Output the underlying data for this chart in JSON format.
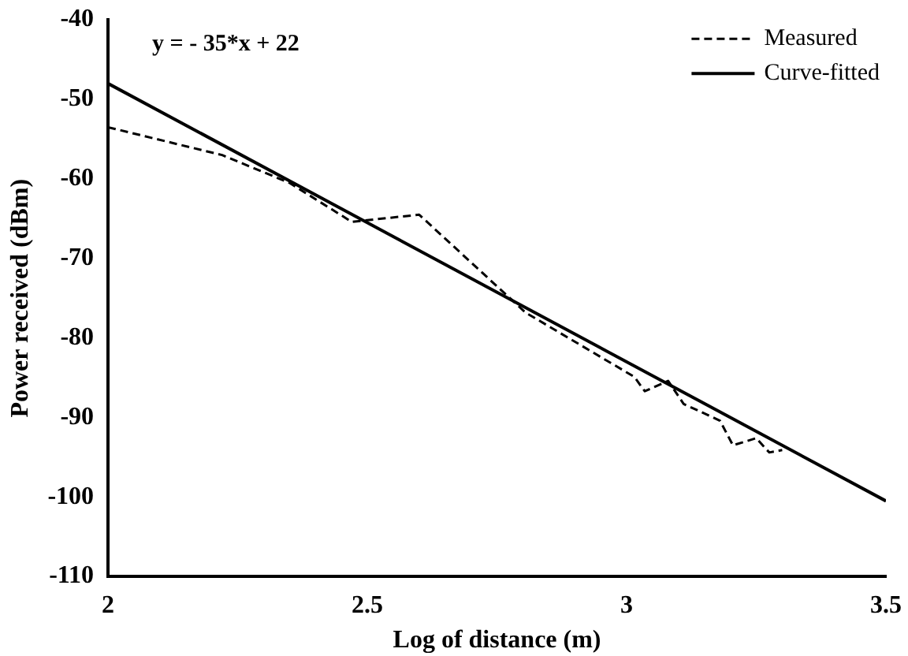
{
  "chart_data": {
    "type": "line",
    "xlabel": "Log of distance (m)",
    "ylabel": "Power received (dBm)",
    "annotations": [
      "y = - 35*x + 22"
    ],
    "xlim": [
      2,
      3.5
    ],
    "xticks": [
      2,
      2.5,
      3,
      3.5
    ],
    "ylim": [
      -110,
      -40
    ],
    "yticks": [
      -110,
      -100,
      -90,
      -80,
      -70,
      -60,
      -50,
      -40
    ],
    "grid": false,
    "legend": "top right",
    "marker": "none",
    "series": [
      {
        "name": "Measured",
        "color": "#000000",
        "line_style": "dashed",
        "x": [
          2,
          2.22,
          2.35,
          2.47,
          2.6,
          2.76,
          2.805,
          3.015,
          3.035,
          3.08,
          3.11,
          3.18,
          3.205,
          3.25,
          3.275,
          3.3
        ],
        "values": [
          -53.5,
          -57,
          -60.5,
          -65.4,
          -64.5,
          -74.1,
          -76.8,
          -84.9,
          -86.7,
          -85.4,
          -88.3,
          -90.4,
          -93.5,
          -92.6,
          -94.4,
          -94.1
        ]
      },
      {
        "name": "Curve-fitted",
        "color": "#000000",
        "line_style": "solid",
        "x": [
          2,
          3.5
        ],
        "values": [
          -48,
          -100.5
        ]
      }
    ]
  }
}
